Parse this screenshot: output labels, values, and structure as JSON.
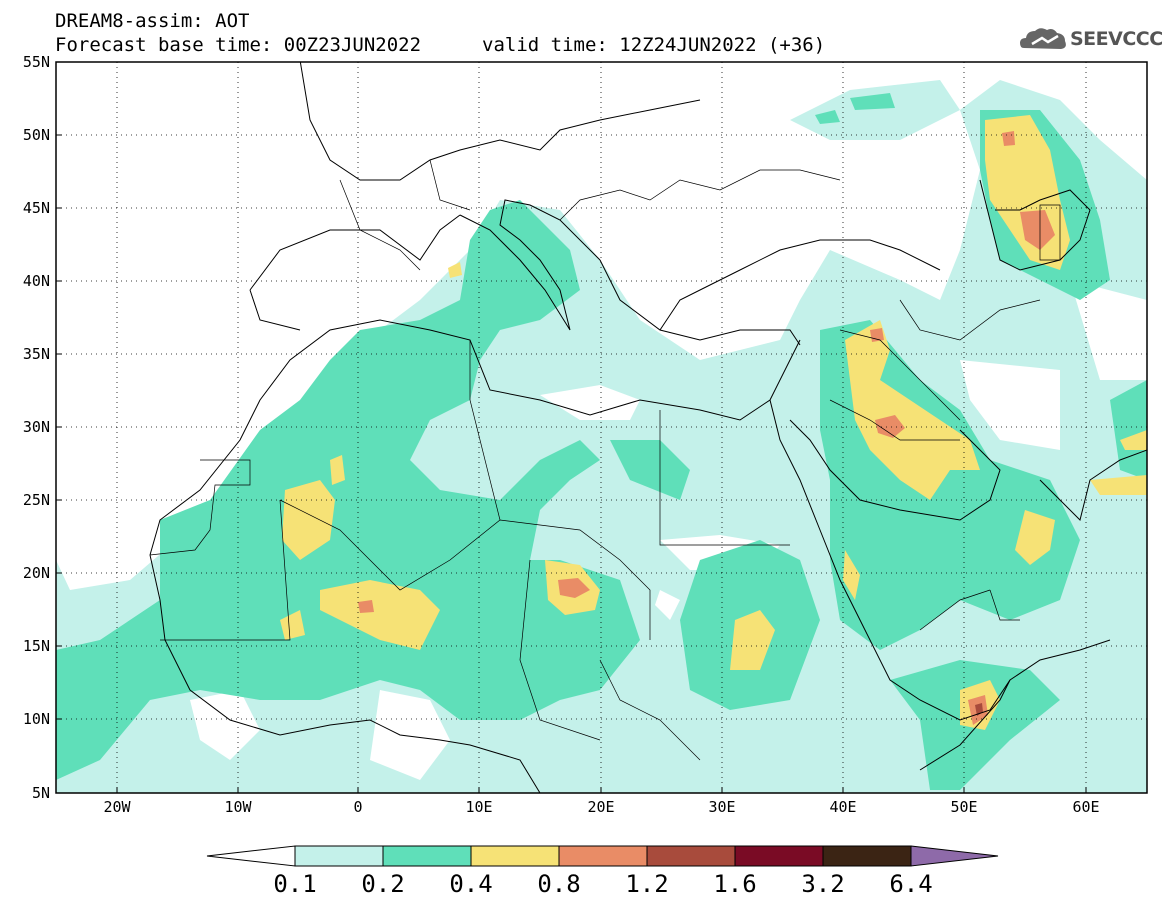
{
  "header": {
    "title": "DREAM8-assim: AOT",
    "base_time": "Forecast base time: 00Z23JUN2022",
    "valid_time": "valid time: 12Z24JUN2022 (+36)",
    "logo_text": "SEEVCCC"
  },
  "map": {
    "lat_labels": [
      "55N",
      "50N",
      "45N",
      "40N",
      "35N",
      "30N",
      "25N",
      "20N",
      "15N",
      "10N",
      "5N"
    ],
    "lon_labels": [
      "20W",
      "10W",
      "0",
      "10E",
      "20E",
      "30E",
      "40E",
      "50E",
      "60E"
    ],
    "lat_range": [
      5,
      55
    ],
    "lon_range": [
      -25,
      65
    ],
    "grid": "dotted"
  },
  "legend": {
    "levels": [
      "0.1",
      "0.2",
      "0.4",
      "0.8",
      "1.2",
      "1.6",
      "3.2",
      "6.4"
    ],
    "colors": [
      "#ffffff",
      "#c4f1ea",
      "#5fdfb9",
      "#f6e276",
      "#e98c66",
      "#a84b3c",
      "#7a0b25",
      "#3b2414",
      "#8e6aa9"
    ]
  }
}
